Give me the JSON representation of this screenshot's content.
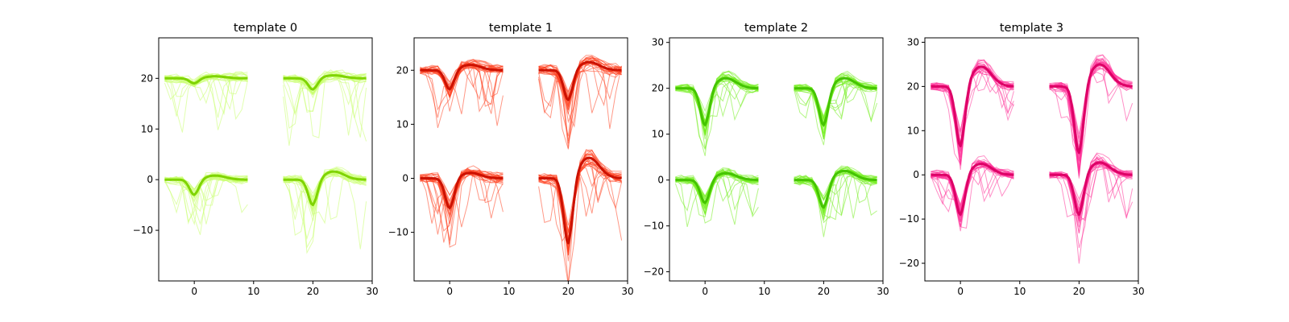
{
  "chart_data": [
    {
      "type": "line",
      "title": "template 0",
      "xlabel": "",
      "ylabel": "",
      "xlim": [
        -6,
        30
      ],
      "ylim": [
        -20,
        28
      ],
      "xticks": [
        0,
        10,
        20,
        30
      ],
      "yticks": [
        -10,
        0,
        10,
        20
      ],
      "grid": false,
      "mean_color": "#7fd400",
      "trace_color": "#c9ff6e",
      "spike_sample": 0,
      "segments_x": [
        [
          -5,
          9
        ],
        [
          15,
          29
        ]
      ],
      "series": [
        {
          "channel": "top-left",
          "offset": 20,
          "trough": -1.0,
          "peak": 0.4,
          "noise": 1.2,
          "dip": 9
        },
        {
          "channel": "top-right",
          "offset": 20,
          "trough": -2.2,
          "peak": 0.6,
          "noise": 1.4,
          "dip": 11
        },
        {
          "channel": "bottom-left",
          "offset": 0,
          "trough": -3.0,
          "peak": 0.8,
          "noise": 1.2,
          "dip": 9
        },
        {
          "channel": "bottom-right",
          "offset": 0,
          "trough": -5.0,
          "peak": 1.6,
          "noise": 1.4,
          "dip": 11
        }
      ]
    },
    {
      "type": "line",
      "title": "template 1",
      "xlabel": "",
      "ylabel": "",
      "xlim": [
        -6,
        30
      ],
      "ylim": [
        -19,
        26
      ],
      "xticks": [
        0,
        10,
        20,
        30
      ],
      "yticks": [
        -10,
        0,
        10,
        20
      ],
      "grid": false,
      "mean_color": "#cc1100",
      "trace_color": "#ff4422",
      "spike_sample": 0,
      "segments_x": [
        [
          -5,
          9
        ],
        [
          15,
          29
        ]
      ],
      "series": [
        {
          "channel": "top-left",
          "offset": 20,
          "trough": -3.5,
          "peak": 1.0,
          "noise": 1.3,
          "dip": 8
        },
        {
          "channel": "top-right",
          "offset": 20,
          "trough": -5.5,
          "peak": 1.5,
          "noise": 1.5,
          "dip": 9
        },
        {
          "channel": "bottom-left",
          "offset": 0,
          "trough": -5.5,
          "peak": 1.0,
          "noise": 1.4,
          "dip": 9
        },
        {
          "channel": "bottom-right",
          "offset": 0,
          "trough": -12.0,
          "peak": 3.8,
          "noise": 1.5,
          "dip": 9
        }
      ]
    },
    {
      "type": "line",
      "title": "template 2",
      "xlabel": "",
      "ylabel": "",
      "xlim": [
        -6,
        30
      ],
      "ylim": [
        -22,
        31
      ],
      "xticks": [
        0,
        10,
        20,
        30
      ],
      "yticks": [
        -20,
        -10,
        0,
        10,
        20,
        30
      ],
      "grid": false,
      "mean_color": "#44c400",
      "trace_color": "#77ee22",
      "spike_sample": 0,
      "segments_x": [
        [
          -5,
          9
        ],
        [
          15,
          29
        ]
      ],
      "series": [
        {
          "channel": "top-left",
          "offset": 20,
          "trough": -8.0,
          "peak": 2.2,
          "noise": 1.3,
          "dip": 8
        },
        {
          "channel": "top-right",
          "offset": 20,
          "trough": -8.0,
          "peak": 2.2,
          "noise": 1.4,
          "dip": 8
        },
        {
          "channel": "bottom-left",
          "offset": 0,
          "trough": -5.0,
          "peak": 1.5,
          "noise": 1.4,
          "dip": 9
        },
        {
          "channel": "bottom-right",
          "offset": 0,
          "trough": -6.0,
          "peak": 2.0,
          "noise": 1.5,
          "dip": 9
        }
      ]
    },
    {
      "type": "line",
      "title": "template 3",
      "xlabel": "",
      "ylabel": "",
      "xlim": [
        -6,
        30
      ],
      "ylim": [
        -24,
        31
      ],
      "xticks": [
        0,
        10,
        20,
        30
      ],
      "yticks": [
        -20,
        -10,
        0,
        10,
        20,
        30
      ],
      "grid": false,
      "mean_color": "#dd0066",
      "trace_color": "#ff3399",
      "spike_sample": 0,
      "segments_x": [
        [
          -5,
          9
        ],
        [
          15,
          29
        ]
      ],
      "series": [
        {
          "channel": "top-left",
          "offset": 20,
          "trough": -13.5,
          "peak": 4.5,
          "noise": 1.4,
          "dip": 7
        },
        {
          "channel": "top-right",
          "offset": 20,
          "trough": -15.0,
          "peak": 5.0,
          "noise": 1.5,
          "dip": 7
        },
        {
          "channel": "bottom-left",
          "offset": 0,
          "trough": -9.0,
          "peak": 2.5,
          "noise": 1.5,
          "dip": 8
        },
        {
          "channel": "bottom-right",
          "offset": 0,
          "trough": -9.0,
          "peak": 2.8,
          "noise": 1.5,
          "dip": 8
        }
      ]
    }
  ]
}
